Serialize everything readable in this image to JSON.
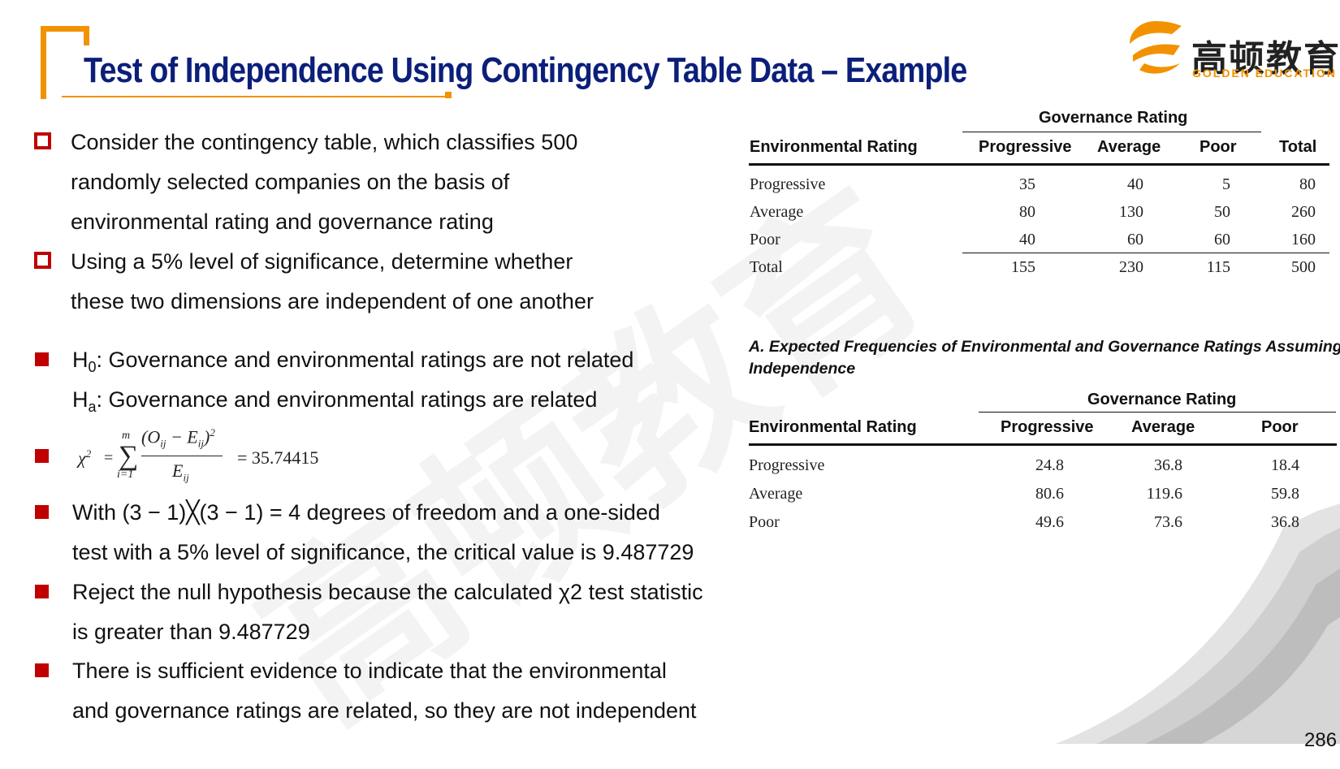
{
  "title": "Test of Independence Using Contingency Table Data – Example",
  "logo": {
    "zh": "高顿教育",
    "en": "GOLDEN EDUCATION"
  },
  "intro_bullets": [
    {
      "lines": [
        "Consider the contingency table, which classifies 500",
        "randomly selected companies on the basis of",
        "environmental rating and governance rating"
      ]
    },
    {
      "lines": [
        "Using a 5% level of significance, determine whether",
        "these two dimensions are independent of one another"
      ]
    }
  ],
  "hypotheses": {
    "h0_symbol": "H",
    "h0_sub": "0",
    "h0_text": ": Governance and environmental ratings are not related",
    "ha_symbol": "H",
    "ha_sub": "a",
    "ha_text": ": Governance and environmental ratings are related"
  },
  "formula": {
    "lhs": "χ",
    "lhs_exp": "2",
    "sum_upper": "m",
    "sum_lower": "i=1",
    "numerator": "(O",
    "numerator_sub": "ij",
    "minus": " − E",
    "minus_sub": "ij",
    "close": ")",
    "num_exp": "2",
    "denominator": "E",
    "denominator_sub": "ij",
    "result": "= 35.74415"
  },
  "conclusion_bullets": [
    {
      "lines": [
        "With (3 − 1)╳(3 − 1) = 4 degrees of freedom and a one-sided",
        "test with a 5% level of significance, the critical value is 9.487729"
      ]
    },
    {
      "lines": [
        "Reject the null hypothesis because the calculated χ2 test statistic",
        "is greater than 9.487729"
      ]
    },
    {
      "lines": [
        "There is sufficient evidence to indicate that the environmental",
        "and governance ratings are related, so they are not independent"
      ]
    }
  ],
  "observed_table": {
    "group_header": "Governance Rating",
    "row_header": "Environmental Rating",
    "columns": [
      "Progressive",
      "Average",
      "Poor",
      "Total"
    ],
    "rows": [
      {
        "label": "Progressive",
        "values": [
          "35",
          "40",
          "5",
          "80"
        ]
      },
      {
        "label": "Average",
        "values": [
          "80",
          "130",
          "50",
          "260"
        ]
      },
      {
        "label": "Poor",
        "values": [
          "40",
          "60",
          "60",
          "160"
        ]
      },
      {
        "label": "Total",
        "values": [
          "155",
          "230",
          "115",
          "500"
        ]
      }
    ]
  },
  "expected_table": {
    "caption_line1": "A. Expected Frequencies of Environmental and Governance Ratings Assuming",
    "caption_line2": "Independence",
    "group_header": "Governance Rating",
    "row_header": "Environmental Rating",
    "columns": [
      "Progressive",
      "Average",
      "Poor"
    ],
    "rows": [
      {
        "label": "Progressive",
        "values": [
          "24.8",
          "36.8",
          "18.4"
        ]
      },
      {
        "label": "Average",
        "values": [
          "80.6",
          "119.6",
          "59.8"
        ]
      },
      {
        "label": "Poor",
        "values": [
          "49.6",
          "73.6",
          "36.8"
        ]
      }
    ]
  },
  "page_number": "286",
  "colors": {
    "title": "#0b1f7a",
    "accent": "#f39200",
    "bullet": "#c00000"
  }
}
